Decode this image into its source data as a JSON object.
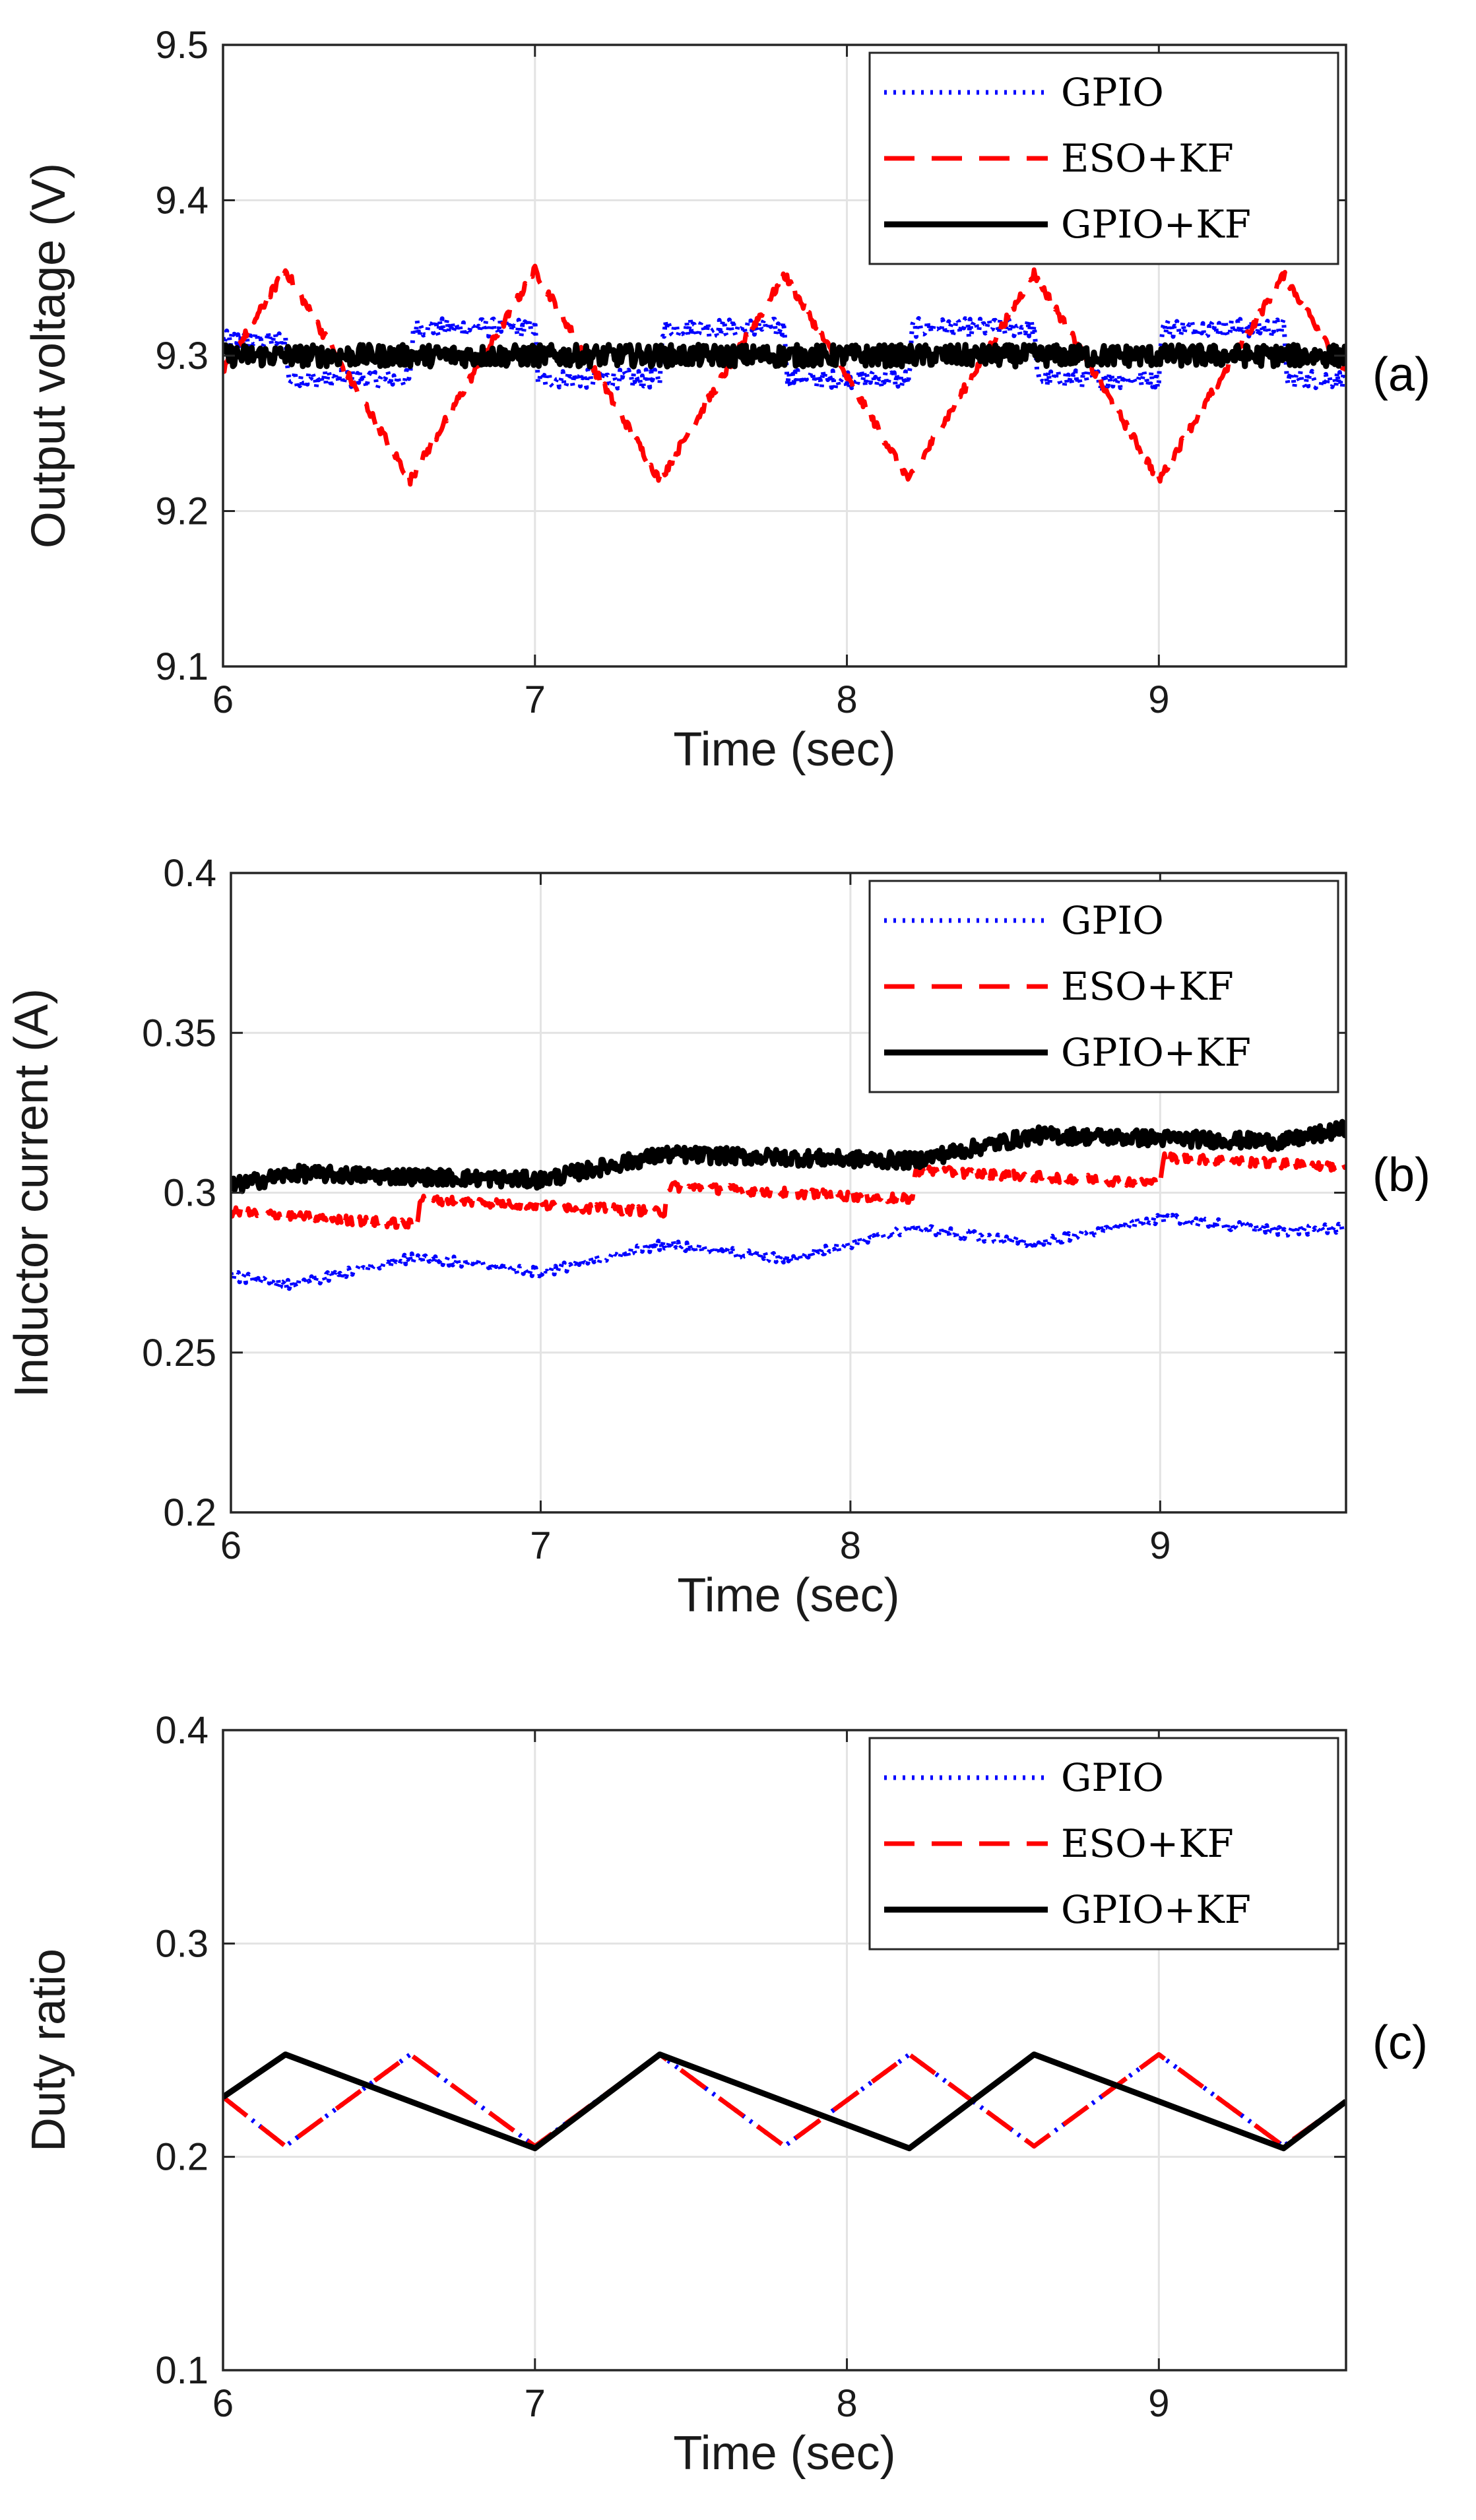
{
  "colors": {
    "gpio": "#0000ff",
    "eso_kf": "#ff0000",
    "gpio_kf": "#000000",
    "grid": "#e3e3e3",
    "axis": "#262626"
  },
  "chart_data": [
    {
      "type": "line",
      "panel_label": "(a)",
      "xlabel": "Time (sec)",
      "ylabel": "Output voltage (V)",
      "xlim": [
        6,
        9.6
      ],
      "ylim": [
        9.1,
        9.5
      ],
      "xticks": [
        6,
        7,
        8,
        9
      ],
      "xtick_labels": [
        "6",
        "7",
        "8",
        "9"
      ],
      "yticks": [
        9.1,
        9.2,
        9.3,
        9.4,
        9.5
      ],
      "ytick_labels": [
        "9.1",
        "9.2",
        "9.3",
        "9.4",
        "9.5"
      ],
      "grid": true,
      "legend_position": "top-right",
      "series": [
        {
          "name": "GPIO",
          "style": "dotted",
          "color": "#0000ff",
          "noise": 0.006,
          "x": [
            6,
            6.2,
            6.21,
            6.6,
            6.61,
            7.0,
            7.01,
            7.4,
            7.41,
            7.8,
            7.81,
            8.2,
            8.21,
            8.6,
            8.61,
            9.0,
            9.01,
            9.4,
            9.41,
            9.6
          ],
          "y": [
            9.31,
            9.31,
            9.285,
            9.285,
            9.318,
            9.318,
            9.285,
            9.285,
            9.318,
            9.318,
            9.285,
            9.285,
            9.318,
            9.318,
            9.285,
            9.285,
            9.318,
            9.318,
            9.285,
            9.285
          ]
        },
        {
          "name": "ESO+KF",
          "style": "dashed",
          "color": "#ff0000",
          "noise": 0.003,
          "x": [
            6,
            6.2,
            6.6,
            7.0,
            7.4,
            7.8,
            8.2,
            8.6,
            9.0,
            9.4,
            9.6
          ],
          "y": [
            9.29,
            9.355,
            9.22,
            9.355,
            9.22,
            9.352,
            9.22,
            9.353,
            9.22,
            9.352,
            9.29
          ]
        },
        {
          "name": "GPIO+KF",
          "style": "solid",
          "color": "#000000",
          "noise": 0.007,
          "x": [
            6,
            9.6
          ],
          "y": [
            9.3,
            9.3
          ]
        }
      ]
    },
    {
      "type": "line",
      "panel_label": "(b)",
      "xlabel": "Time (sec)",
      "ylabel": "Inductor current (A)",
      "xlim": [
        6,
        9.6
      ],
      "ylim": [
        0.2,
        0.4
      ],
      "xticks": [
        6,
        7,
        8,
        9
      ],
      "xtick_labels": [
        "6",
        "7",
        "8",
        "9"
      ],
      "yticks": [
        0.2,
        0.25,
        0.3,
        0.35,
        0.4
      ],
      "ytick_labels": [
        "0.2",
        "0.25",
        "0.3",
        "0.35",
        "0.4"
      ],
      "grid": true,
      "legend_position": "top-right",
      "series": [
        {
          "name": "GPIO",
          "style": "dotted",
          "color": "#0000ff",
          "noise": 0.0015,
          "x": [
            6,
            6.2,
            6.6,
            7.0,
            7.4,
            7.8,
            8.2,
            8.6,
            9.0,
            9.4,
            9.6
          ],
          "y": [
            0.274,
            0.271,
            0.28,
            0.275,
            0.284,
            0.279,
            0.289,
            0.284,
            0.292,
            0.288,
            0.289
          ]
        },
        {
          "name": "ESO+KF",
          "style": "dashed",
          "color": "#ff0000",
          "noise": 0.0015,
          "x": [
            6,
            6.6,
            6.61,
            7.4,
            7.41,
            8.2,
            8.21,
            9.0,
            9.01,
            9.6
          ],
          "y": [
            0.294,
            0.29,
            0.298,
            0.294,
            0.302,
            0.298,
            0.307,
            0.303,
            0.311,
            0.308
          ]
        },
        {
          "name": "GPIO+KF",
          "style": "solid",
          "color": "#000000",
          "noise": 0.0025,
          "x": [
            6,
            6.2,
            7.0,
            7.4,
            8.2,
            8.6,
            9.4,
            9.6
          ],
          "y": [
            0.302,
            0.306,
            0.304,
            0.312,
            0.31,
            0.318,
            0.316,
            0.32
          ]
        }
      ]
    },
    {
      "type": "line",
      "panel_label": "(c)",
      "xlabel": "Time (sec)",
      "ylabel": "Duty ratio",
      "xlim": [
        6,
        9.6
      ],
      "ylim": [
        0.1,
        0.4
      ],
      "xticks": [
        6,
        7,
        8,
        9
      ],
      "xtick_labels": [
        "6",
        "7",
        "8",
        "9"
      ],
      "yticks": [
        0.1,
        0.2,
        0.3,
        0.4
      ],
      "ytick_labels": [
        "0.1",
        "0.2",
        "0.3",
        "0.4"
      ],
      "grid": true,
      "legend_position": "top-right",
      "series": [
        {
          "name": "GPIO",
          "style": "dotted",
          "color": "#0000ff",
          "noise": 0,
          "x": [
            6,
            6.2,
            6.6,
            7.0,
            7.4,
            7.8,
            8.2,
            8.6,
            9.0,
            9.4,
            9.6
          ],
          "y": [
            0.228,
            0.205,
            0.248,
            0.205,
            0.248,
            0.205,
            0.248,
            0.205,
            0.248,
            0.205,
            0.226
          ]
        },
        {
          "name": "ESO+KF",
          "style": "dashed",
          "color": "#ff0000",
          "noise": 0,
          "x": [
            6,
            6.2,
            6.6,
            7.0,
            7.4,
            7.8,
            8.2,
            8.6,
            9.0,
            9.4,
            9.6
          ],
          "y": [
            0.228,
            0.205,
            0.248,
            0.205,
            0.248,
            0.205,
            0.248,
            0.205,
            0.248,
            0.205,
            0.226
          ]
        },
        {
          "name": "GPIO+KF",
          "style": "solid",
          "color": "#000000",
          "noise": 0,
          "x": [
            6,
            6.2,
            7.0,
            7.4,
            8.2,
            8.6,
            9.4,
            9.6
          ],
          "y": [
            0.228,
            0.248,
            0.204,
            0.248,
            0.204,
            0.248,
            0.204,
            0.226
          ]
        }
      ]
    }
  ]
}
